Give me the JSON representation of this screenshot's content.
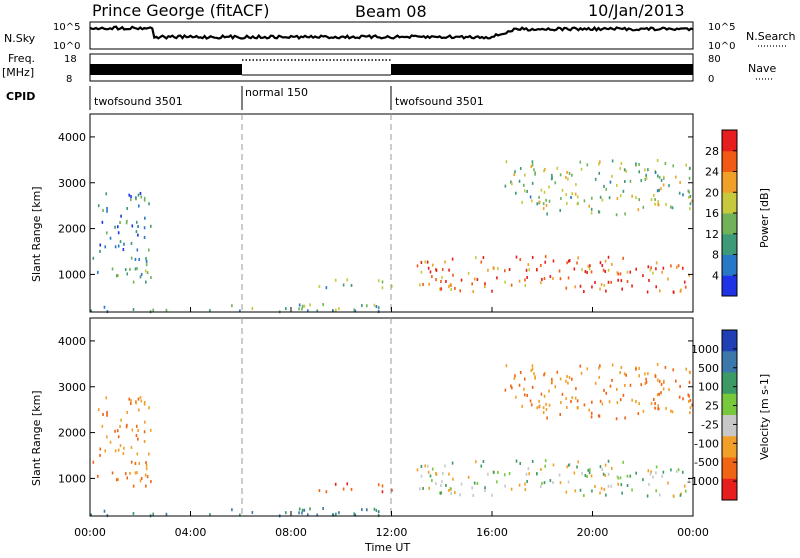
{
  "header": {
    "station": "Prince George (fitACF)",
    "beam": "Beam 08",
    "date": "10/Jan/2013"
  },
  "strips": {
    "nsky_label": "N.Sky",
    "nsearch_label": "N.Search",
    "freq_label_1": "Freq.",
    "freq_label_2": "[MHz]",
    "nave_label": "Nave",
    "cpid_label": "CPID",
    "nsky_ticks": [
      "10^5",
      "10^0"
    ],
    "nsearch_ticks": [
      "10^5",
      "10^0"
    ],
    "freq_ticks": [
      "18",
      "8"
    ],
    "nave_ticks": [
      "80",
      "0"
    ],
    "cpid_segments": [
      {
        "label": "twofsound 3501",
        "start_hour": 0,
        "end_hour": 6
      },
      {
        "label": "normal 150",
        "start_hour": 6,
        "end_hour": 12
      },
      {
        "label": "twofsound 3501",
        "start_hour": 12,
        "end_hour": 24
      }
    ]
  },
  "panels": {
    "ylabel": "Slant Range [km]",
    "xlabel": "Time UT",
    "x_ticks": [
      "00:00",
      "04:00",
      "08:00",
      "12:00",
      "16:00",
      "20:00",
      "00:00"
    ],
    "y_ticks": [
      "1000",
      "2000",
      "3000",
      "4000"
    ]
  },
  "power_colorbar": {
    "label": "Power [dB]",
    "ticks": [
      "4",
      "8",
      "12",
      "16",
      "20",
      "24",
      "28"
    ],
    "colors": [
      "#1f33e6",
      "#2878c8",
      "#3d9a78",
      "#6fb25a",
      "#c8c83c",
      "#f0a028",
      "#f05a14",
      "#e61e1e"
    ]
  },
  "velocity_colorbar": {
    "label": "Velocity [m s-1]",
    "ticks": [
      "1000",
      "500",
      "100",
      "25",
      "-25",
      "-100",
      "-500",
      "-1000"
    ],
    "colors": [
      "#1f3fb4",
      "#3c78aa",
      "#3c9a64",
      "#78c83c",
      "#c8c8c8",
      "#f0a028",
      "#f06414",
      "#e61e1e"
    ]
  },
  "chart_data": {
    "type": "heatmap",
    "x_range_hours": [
      0,
      24
    ],
    "y_range_km": [
      180,
      4500
    ],
    "power_scale_db": [
      0,
      30
    ],
    "velocity_scale_ms": [
      -1000,
      1000
    ],
    "scatter_regions": [
      {
        "t": [
          0.1,
          2.4
        ],
        "range_km": [
          800,
          1400
        ],
        "power_db": 12,
        "velocity_ms": -100
      },
      {
        "t": [
          0.2,
          2.4
        ],
        "range_km": [
          1500,
          2800
        ],
        "power_db": 8,
        "velocity_ms": -100
      },
      {
        "t": [
          0.0,
          12.0
        ],
        "range_km": [
          180,
          350
        ],
        "power_db": 10,
        "velocity_ms": 100
      },
      {
        "t": [
          9.0,
          12.0
        ],
        "range_km": [
          700,
          900
        ],
        "power_db": 14,
        "velocity_ms": -500
      },
      {
        "t": [
          13.0,
          24.0
        ],
        "range_km": [
          600,
          1400
        ],
        "power_db": 24,
        "velocity_ms": 0
      },
      {
        "t": [
          16.5,
          24.0
        ],
        "range_km": [
          2300,
          3500
        ],
        "power_db": 14,
        "velocity_ms": -100
      }
    ]
  }
}
